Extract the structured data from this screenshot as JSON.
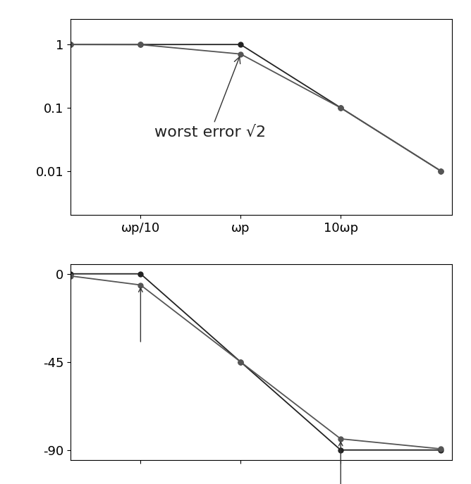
{
  "chart_data": [
    {
      "type": "line",
      "log": true,
      "xlim": [
        0.02,
        130
      ],
      "ylim": [
        0.002,
        2.5
      ],
      "xticks": [
        {
          "value": 0.1,
          "label": "ωp/10"
        },
        {
          "value": 1,
          "label": "ωp"
        },
        {
          "value": 10,
          "label": "10ωp"
        }
      ],
      "yticks": [
        {
          "value": 0.01,
          "label": "0.01"
        },
        {
          "value": 0.1,
          "label": "0.1"
        },
        {
          "value": 1,
          "label": "1"
        }
      ],
      "grid": false,
      "annotations": [
        {
          "text": "worst error √2",
          "x": 1,
          "y": 0.707
        }
      ],
      "series": [
        {
          "color": "#222222",
          "marker": "o",
          "line_style": "solid",
          "x": [
            0.02,
            0.1,
            1,
            10,
            100
          ],
          "values": [
            1,
            1,
            1,
            0.1,
            0.01
          ]
        },
        {
          "color": "#555555",
          "marker": "o",
          "line_style": "solid",
          "x": [
            0.02,
            0.1,
            1,
            10,
            100
          ],
          "values": [
            1,
            0.995,
            0.707,
            0.0995,
            0.01
          ]
        }
      ]
    },
    {
      "type": "line",
      "log": "x",
      "tick_labels": "y",
      "xlim": [
        0.02,
        130
      ],
      "ylim": [
        -95,
        5
      ],
      "xticks": [
        0.1,
        1,
        10
      ],
      "yticks": [
        -90,
        -45,
        0
      ],
      "grid": false,
      "series": [
        {
          "color": "#222222",
          "marker": "o",
          "line_style": "solid",
          "x": [
            0.02,
            0.1,
            1,
            10,
            100
          ],
          "values": [
            0,
            0,
            -45,
            -90,
            -90
          ]
        },
        {
          "color": "#555555",
          "marker": "o",
          "line_style": "solid",
          "x": [
            0.02,
            0.1,
            1,
            10,
            100
          ],
          "values": [
            -1.1,
            -5.7,
            -45,
            -84.3,
            -89.4
          ]
        }
      ]
    }
  ]
}
